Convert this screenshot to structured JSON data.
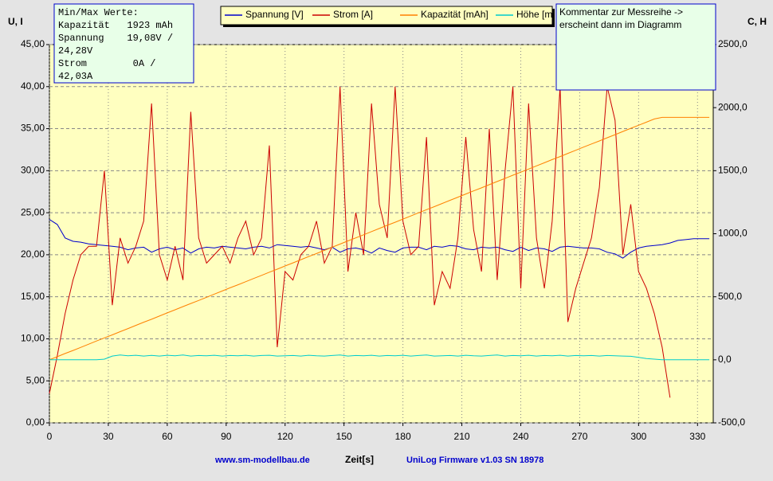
{
  "chart_data": {
    "type": "line",
    "y_label": "U, I",
    "y2_label": "C, H",
    "x_label": "Zeit[s]",
    "footer_left": "www.sm-modellbau.de",
    "footer_right": "UniLog Firmware v1.03 SN 18978",
    "stats_box": [
      "Min/Max Werte:",
      "Kapazität   1923 mAh",
      "Spannung    19,08V /",
      "24,28V",
      "Strom        0A /",
      "42,03A"
    ],
    "comment": [
      "Kommentar zur Messreihe ->",
      "erscheint dann im Diagramm"
    ],
    "legend": "top",
    "grid": true,
    "xlim": [
      0,
      338
    ],
    "xticks": [
      0,
      30,
      60,
      90,
      120,
      150,
      180,
      210,
      240,
      270,
      300,
      330
    ],
    "ylim": [
      0,
      45
    ],
    "yticks": [
      {
        "value": 0,
        "label": "0,00"
      },
      {
        "value": 5,
        "label": "5,00"
      },
      {
        "value": 10,
        "label": "10,00"
      },
      {
        "value": 15,
        "label": "15,00"
      },
      {
        "value": 20,
        "label": "20,00"
      },
      {
        "value": 25,
        "label": "25,00"
      },
      {
        "value": 30,
        "label": "30,00"
      },
      {
        "value": 35,
        "label": "35,00"
      },
      {
        "value": 40,
        "label": "40,00"
      },
      {
        "value": 45,
        "label": "45,00"
      }
    ],
    "y2lim": [
      -500,
      2500
    ],
    "y2ticks": [
      {
        "value": -500,
        "label": "-500,0"
      },
      {
        "value": 0,
        "label": "0,0"
      },
      {
        "value": 500,
        "label": "500,0"
      },
      {
        "value": 1000,
        "label": "1000,0"
      },
      {
        "value": 1500,
        "label": "1500,0"
      },
      {
        "value": 2000,
        "label": "2000,0"
      },
      {
        "value": 2500,
        "label": "2500,0"
      }
    ],
    "x": [
      0,
      4,
      8,
      12,
      16,
      20,
      24,
      28,
      32,
      36,
      40,
      44,
      48,
      52,
      56,
      60,
      64,
      68,
      72,
      76,
      80,
      84,
      88,
      92,
      96,
      100,
      104,
      108,
      112,
      116,
      120,
      124,
      128,
      132,
      136,
      140,
      144,
      148,
      152,
      156,
      160,
      164,
      168,
      172,
      176,
      180,
      184,
      188,
      192,
      196,
      200,
      204,
      208,
      212,
      216,
      220,
      224,
      228,
      232,
      236,
      240,
      244,
      248,
      252,
      256,
      260,
      264,
      268,
      272,
      276,
      280,
      284,
      288,
      292,
      296,
      300,
      304,
      308,
      312,
      316,
      320,
      324,
      328,
      332,
      336
    ],
    "series": [
      {
        "name": "Spannung [V]",
        "color": "#0000cc",
        "values": [
          24.2,
          23.6,
          22.0,
          21.6,
          21.5,
          21.3,
          21.2,
          21.1,
          21.0,
          20.9,
          20.6,
          20.8,
          20.9,
          20.3,
          20.7,
          20.9,
          20.6,
          20.8,
          20.2,
          20.7,
          20.9,
          20.8,
          21.0,
          20.9,
          20.8,
          20.7,
          20.9,
          21.0,
          20.8,
          21.2,
          21.1,
          21.0,
          20.9,
          21.0,
          20.8,
          20.6,
          20.9,
          20.3,
          20.7,
          20.8,
          20.6,
          20.2,
          20.8,
          20.5,
          20.3,
          20.8,
          20.9,
          20.9,
          20.6,
          21.0,
          20.9,
          21.1,
          21.0,
          20.7,
          20.6,
          20.9,
          20.8,
          20.9,
          20.6,
          20.4,
          20.9,
          20.5,
          20.8,
          20.7,
          20.4,
          20.9,
          21.0,
          20.9,
          20.8,
          20.8,
          20.7,
          20.3,
          20.1,
          19.6,
          20.3,
          20.8,
          21.0,
          21.1,
          21.2,
          21.4,
          21.7,
          21.8,
          21.9,
          21.9,
          21.9
        ]
      },
      {
        "name": "Strom [A]",
        "color": "#cc0000",
        "values": [
          3.5,
          8,
          13,
          17,
          20,
          21,
          21,
          30,
          14,
          22,
          19,
          21,
          24,
          38,
          20,
          17,
          21,
          17,
          37,
          22,
          19,
          20,
          21,
          19,
          22,
          24,
          20,
          22,
          33,
          9,
          18,
          17,
          20,
          21,
          24,
          19,
          21,
          40,
          18,
          25,
          20,
          38,
          26,
          22,
          40,
          24,
          20,
          21,
          34,
          14,
          18,
          16,
          22,
          34,
          23,
          18,
          35,
          17,
          30,
          40,
          16,
          38,
          22,
          16,
          24,
          40,
          12,
          16,
          19,
          22,
          28,
          40,
          36,
          20,
          26,
          18,
          16,
          13,
          9,
          3,
          null,
          null,
          null,
          null,
          null
        ]
      },
      {
        "name": "Kapazität [mAh]",
        "color": "#ff8000",
        "axis": "y2",
        "values": [
          0,
          25,
          50,
          74,
          99,
          124,
          149,
          174,
          198,
          223,
          248,
          273,
          298,
          322,
          347,
          372,
          397,
          422,
          447,
          471,
          496,
          521,
          546,
          571,
          595,
          620,
          645,
          670,
          695,
          719,
          744,
          769,
          794,
          819,
          843,
          868,
          893,
          918,
          943,
          967,
          992,
          1017,
          1042,
          1067,
          1091,
          1116,
          1141,
          1166,
          1191,
          1215,
          1240,
          1265,
          1290,
          1315,
          1340,
          1364,
          1389,
          1414,
          1439,
          1464,
          1488,
          1513,
          1538,
          1563,
          1588,
          1612,
          1637,
          1662,
          1687,
          1712,
          1736,
          1761,
          1786,
          1811,
          1836,
          1860,
          1885,
          1910,
          1923,
          1923,
          1923,
          1923,
          1923,
          1923,
          1923
        ]
      },
      {
        "name": "Höhe [m]",
        "color": "#00cccc",
        "axis": "y2",
        "values": [
          0,
          0,
          0,
          0,
          0,
          0,
          0,
          5,
          30,
          38,
          32,
          36,
          30,
          35,
          30,
          36,
          32,
          38,
          30,
          34,
          32,
          36,
          30,
          34,
          32,
          36,
          30,
          34,
          36,
          30,
          32,
          34,
          30,
          36,
          32,
          30,
          34,
          38,
          30,
          34,
          32,
          36,
          30,
          34,
          32,
          36,
          30,
          34,
          38,
          30,
          32,
          34,
          30,
          36,
          32,
          30,
          34,
          38,
          30,
          34,
          32,
          36,
          30,
          34,
          32,
          36,
          30,
          34,
          32,
          34,
          30,
          34,
          32,
          30,
          28,
          20,
          10,
          5,
          0,
          0,
          0,
          0,
          0,
          0,
          0
        ]
      }
    ]
  }
}
